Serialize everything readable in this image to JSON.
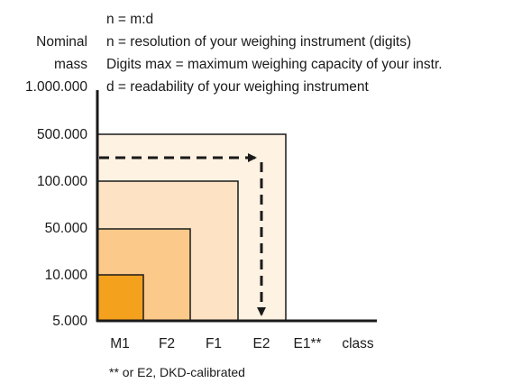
{
  "formula_lines": [
    "n = m:d",
    "n = resolution of your weighing instrument (digits)",
    "Digits  max = maximum weighing capacity of your instr.",
    "d = readability of your weighing instrument"
  ],
  "y_axis_title_lines": [
    "Nominal",
    "mass"
  ],
  "y_ticks": [
    "1.000.000",
    "500.000",
    "100.000",
    "50.000",
    "10.000",
    "5.000"
  ],
  "x_ticks": [
    "M1",
    "F2",
    "F1",
    "E2",
    "E1**"
  ],
  "x_axis_label": "class",
  "footnote": "** or E2, DKD-calibrated",
  "chart_data": {
    "type": "nested-step-area",
    "x_axis": {
      "label": "class",
      "categories": [
        "M1",
        "F2",
        "F1",
        "E2",
        "E1**"
      ]
    },
    "y_axis": {
      "title": "Nominal mass",
      "tick_labels": [
        "1.000.000",
        "500.000",
        "100.000",
        "50.000",
        "10.000",
        "5.000"
      ]
    },
    "regions": [
      {
        "class": "M1",
        "max_nominal_mass": "10.000",
        "color": "#f4a11d"
      },
      {
        "class": "F2",
        "max_nominal_mass": "50.000",
        "color": "#fbc98a"
      },
      {
        "class": "F1",
        "max_nominal_mass": "100.000",
        "color": "#fde3c4"
      },
      {
        "class": "E2",
        "max_nominal_mass": "500.000",
        "color": "#fef2e2"
      }
    ],
    "arrow": {
      "from_nominal_mass": "500.000",
      "to_class": "E2",
      "style": "dashed"
    }
  },
  "colors": {
    "m1": "#f4a11d",
    "f2": "#fbc98a",
    "f1": "#fde3c4",
    "e2": "#fef2e2",
    "stroke": "#1a1a1a"
  }
}
